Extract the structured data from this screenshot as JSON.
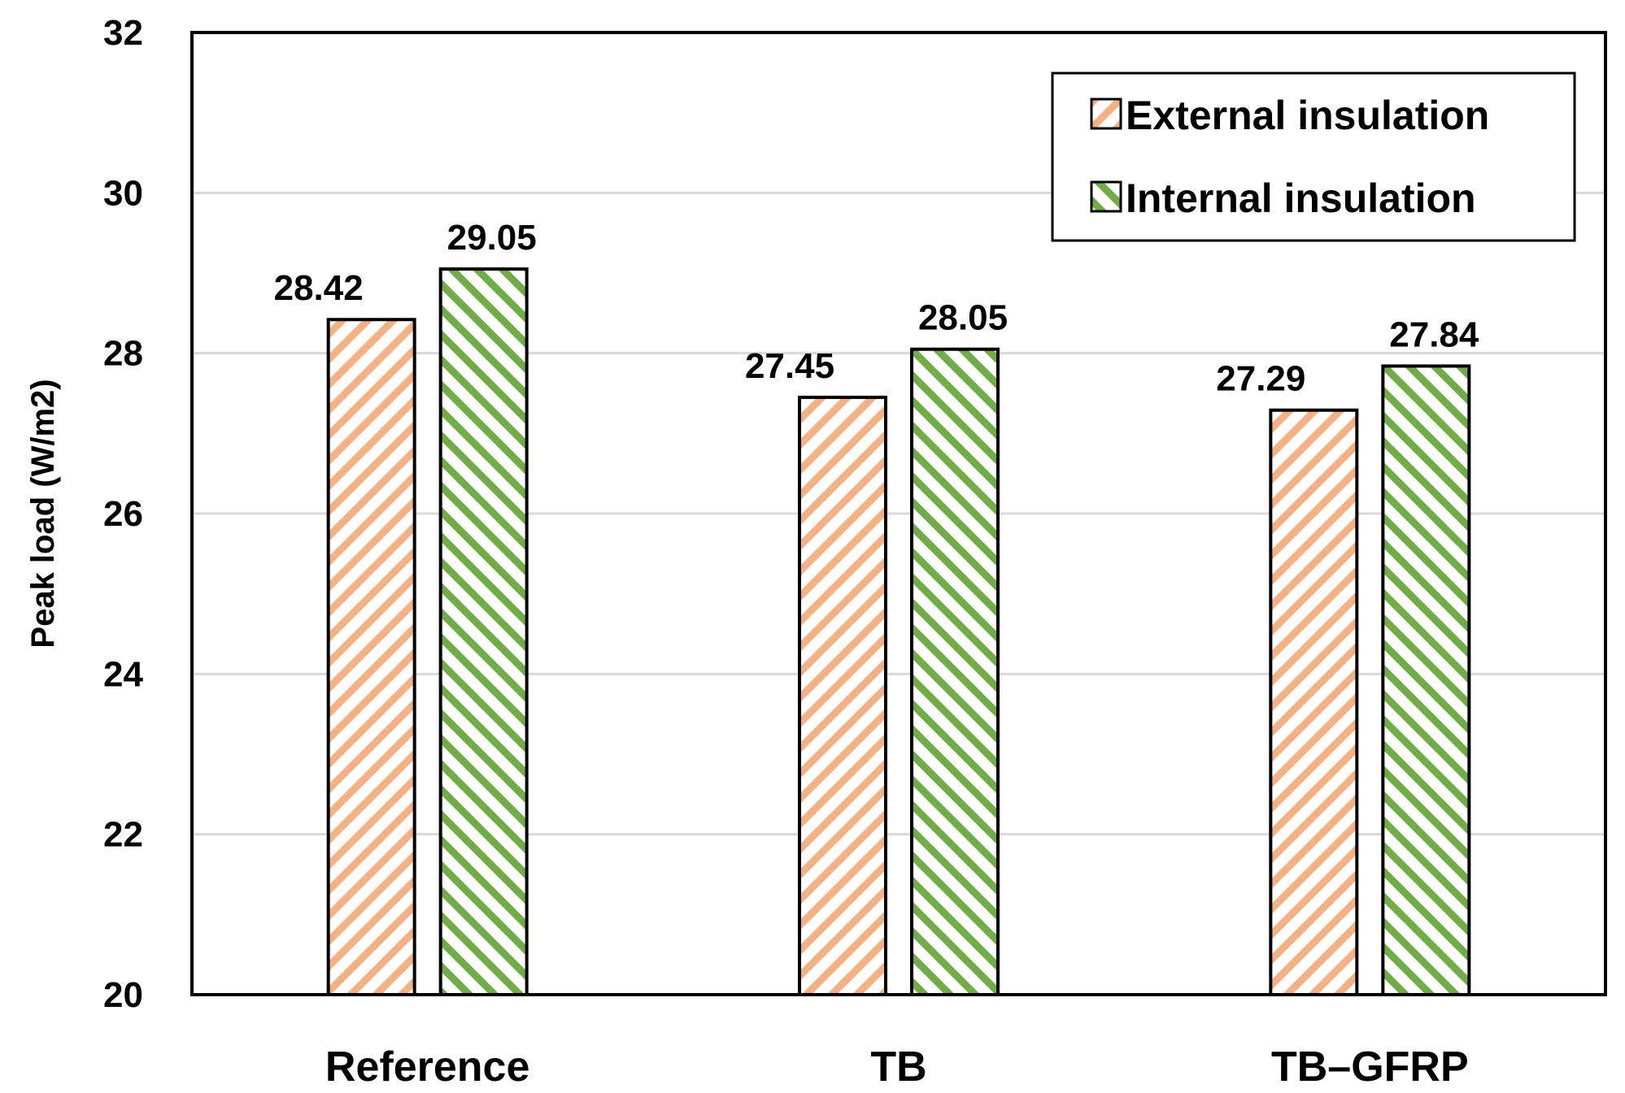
{
  "chart_data": {
    "type": "bar",
    "title": "",
    "xlabel": "",
    "ylabel": "Peak load (W/m2)",
    "ylim": [
      20,
      32
    ],
    "yticks": [
      20,
      22,
      24,
      26,
      28,
      30,
      32
    ],
    "grid": true,
    "legend_position": "top-right",
    "categories": [
      "Reference",
      "TB",
      "TB–GFRP"
    ],
    "series": [
      {
        "name": "External insulation",
        "values": [
          28.42,
          27.45,
          27.29
        ],
        "value_labels": [
          "28.42",
          "27.45",
          "27.29"
        ],
        "color": "#f4b183",
        "pattern": "forward-diagonal-hatch"
      },
      {
        "name": "Internal insulation",
        "values": [
          29.05,
          28.05,
          27.84
        ],
        "value_labels": [
          "29.05",
          "28.05",
          "27.84"
        ],
        "color": "#70ad47",
        "pattern": "backward-diagonal-hatch"
      }
    ]
  }
}
